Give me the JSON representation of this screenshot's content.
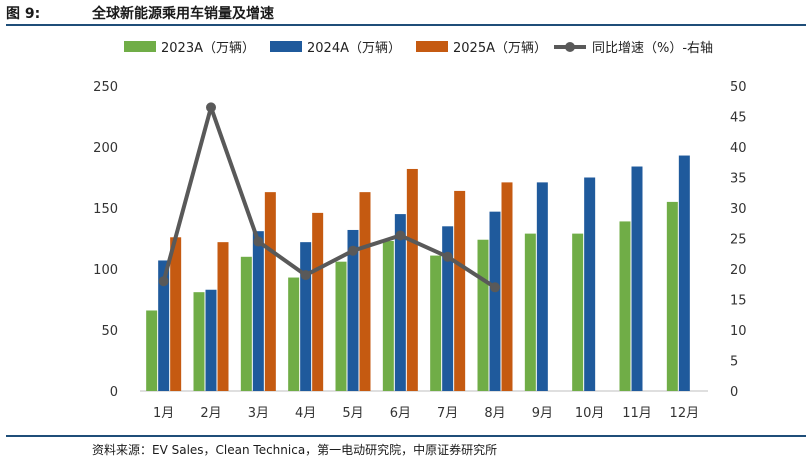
{
  "header": {
    "figure_label": "图 9:",
    "title": "全球新能源乘用车销量及增速"
  },
  "footer": {
    "source": "资料来源：EV Sales，Clean Technica，第一电动研究院，中原证券研究所"
  },
  "chart_data": {
    "type": "bar",
    "title": "全球新能源乘用车销量及增速",
    "categories": [
      "1月",
      "2月",
      "3月",
      "4月",
      "5月",
      "6月",
      "7月",
      "8月",
      "9月",
      "10月",
      "11月",
      "12月"
    ],
    "series": [
      {
        "name": "2023A（万辆）",
        "kind": "bar",
        "axis": "left",
        "color": "#70ad47",
        "values": [
          66,
          81,
          110,
          93,
          106,
          123,
          111,
          124,
          129,
          129,
          139,
          155
        ]
      },
      {
        "name": "2024A（万辆）",
        "kind": "bar",
        "axis": "left",
        "color": "#1f5a9c",
        "values": [
          107,
          83,
          131,
          122,
          132,
          145,
          135,
          147,
          171,
          175,
          184,
          193
        ]
      },
      {
        "name": "2025A（万辆）",
        "kind": "bar",
        "axis": "left",
        "color": "#c55a11",
        "values": [
          126,
          122,
          163,
          146,
          163,
          182,
          164,
          171,
          null,
          null,
          null,
          null
        ]
      },
      {
        "name": "同比增速（%）-右轴",
        "kind": "line",
        "axis": "right",
        "color": "#595959",
        "values": [
          18,
          46.5,
          24.5,
          19,
          23,
          25.5,
          22,
          17,
          null,
          null,
          null,
          null
        ]
      }
    ],
    "left_axis": {
      "min": 0,
      "max": 250,
      "ticks": [
        "0",
        "50",
        "100",
        "150",
        "200",
        "250"
      ]
    },
    "right_axis": {
      "min": 0,
      "max": 50,
      "ticks": [
        "0",
        "5",
        "10",
        "15",
        "20",
        "25",
        "30",
        "35",
        "40",
        "45",
        "50"
      ]
    },
    "grid": false,
    "legend_position": "top"
  }
}
